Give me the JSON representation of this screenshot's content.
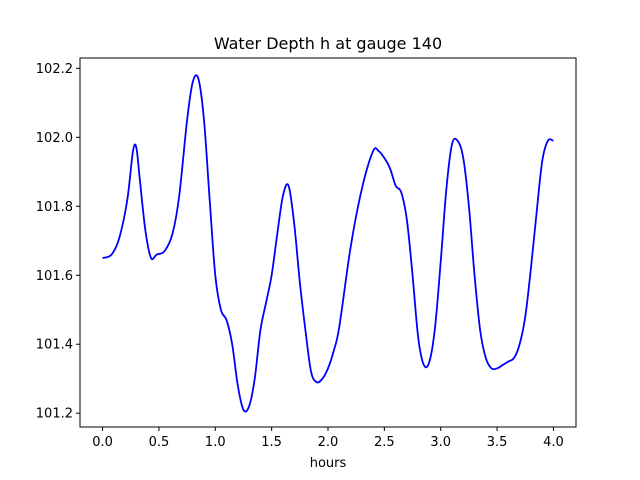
{
  "chart_data": {
    "type": "line",
    "title": "Water Depth h at gauge 140",
    "xlabel": "hours",
    "ylabel": "",
    "xlim": [
      -0.2,
      4.2
    ],
    "ylim": [
      101.16,
      102.23
    ],
    "xticks": [
      0.0,
      0.5,
      1.0,
      1.5,
      2.0,
      2.5,
      3.0,
      3.5,
      4.0
    ],
    "xtick_labels": [
      "0.0",
      "0.5",
      "1.0",
      "1.5",
      "2.0",
      "2.5",
      "3.0",
      "3.5",
      "4.0"
    ],
    "yticks": [
      101.2,
      101.4,
      101.6,
      101.8,
      102.0,
      102.2
    ],
    "ytick_labels": [
      "101.2",
      "101.4",
      "101.6",
      "101.8",
      "102.0",
      "102.2"
    ],
    "grid": false,
    "series": [
      {
        "color": "#0000ff",
        "x": [
          0.0,
          0.08,
          0.15,
          0.22,
          0.27,
          0.3,
          0.33,
          0.38,
          0.43,
          0.48,
          0.55,
          0.62,
          0.68,
          0.75,
          0.8,
          0.85,
          0.9,
          0.95,
          1.0,
          1.05,
          1.1,
          1.15,
          1.2,
          1.25,
          1.3,
          1.35,
          1.4,
          1.45,
          1.5,
          1.55,
          1.6,
          1.65,
          1.7,
          1.75,
          1.8,
          1.85,
          1.9,
          1.95,
          2.0,
          2.05,
          2.1,
          2.2,
          2.3,
          2.4,
          2.45,
          2.5,
          2.55,
          2.6,
          2.65,
          2.7,
          2.75,
          2.8,
          2.85,
          2.9,
          2.95,
          3.0,
          3.05,
          3.1,
          3.15,
          3.2,
          3.25,
          3.3,
          3.35,
          3.4,
          3.45,
          3.5,
          3.55,
          3.6,
          3.65,
          3.7,
          3.75,
          3.8,
          3.85,
          3.9,
          3.95,
          4.0
        ],
        "y": [
          101.65,
          101.66,
          101.71,
          101.82,
          101.96,
          101.97,
          101.88,
          101.73,
          101.65,
          101.66,
          101.67,
          101.72,
          101.83,
          102.05,
          102.16,
          102.17,
          102.05,
          101.82,
          101.6,
          101.5,
          101.47,
          101.4,
          101.28,
          101.21,
          101.22,
          101.3,
          101.44,
          101.52,
          101.6,
          101.72,
          101.83,
          101.86,
          101.75,
          101.58,
          101.44,
          101.32,
          101.29,
          101.3,
          101.33,
          101.38,
          101.45,
          101.68,
          101.85,
          101.96,
          101.96,
          101.94,
          101.91,
          101.86,
          101.84,
          101.76,
          101.6,
          101.42,
          101.34,
          101.35,
          101.45,
          101.64,
          101.85,
          101.98,
          101.99,
          101.94,
          101.8,
          101.6,
          101.44,
          101.36,
          101.33,
          101.33,
          101.34,
          101.35,
          101.36,
          101.4,
          101.48,
          101.62,
          101.78,
          101.93,
          101.99,
          101.99
        ]
      }
    ]
  }
}
